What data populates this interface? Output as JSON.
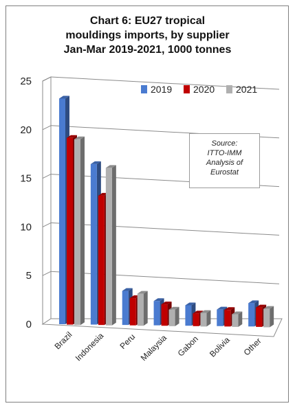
{
  "title_lines": [
    "Chart 6: EU27 tropical",
    "mouldings imports, by supplier",
    "Jan-Mar 2019-2021, 1000 tonnes"
  ],
  "source_lines": [
    "Source:",
    "ITTO-IMM",
    "Analysis of",
    "Eurostat"
  ],
  "colors": {
    "2019": "#4a7bd0",
    "2020": "#c00000",
    "2021": "#b0b0b0"
  },
  "chart_data": {
    "type": "bar",
    "title": "Chart 6: EU27 tropical mouldings imports, by supplier Jan-Mar 2019-2021, 1000 tonnes",
    "categories": [
      "Brazil",
      "Indonesia",
      "Peru",
      "Malaysia",
      "Gabon",
      "Bolivia",
      "Other"
    ],
    "series": [
      {
        "name": "2019",
        "values": [
          23.2,
          16.5,
          3.5,
          2.5,
          2.1,
          1.7,
          2.4
        ]
      },
      {
        "name": "2020",
        "values": [
          19.2,
          13.3,
          2.8,
          2.2,
          1.3,
          1.7,
          2.0
        ]
      },
      {
        "name": "2021",
        "values": [
          19.1,
          16.2,
          3.3,
          1.7,
          1.4,
          1.3,
          1.9
        ]
      }
    ],
    "ylim": [
      0,
      25
    ],
    "yticks": [
      0,
      5,
      10,
      15,
      20,
      25
    ],
    "xlabel": "",
    "ylabel": "",
    "grid": true,
    "legend_position": "top-right"
  }
}
